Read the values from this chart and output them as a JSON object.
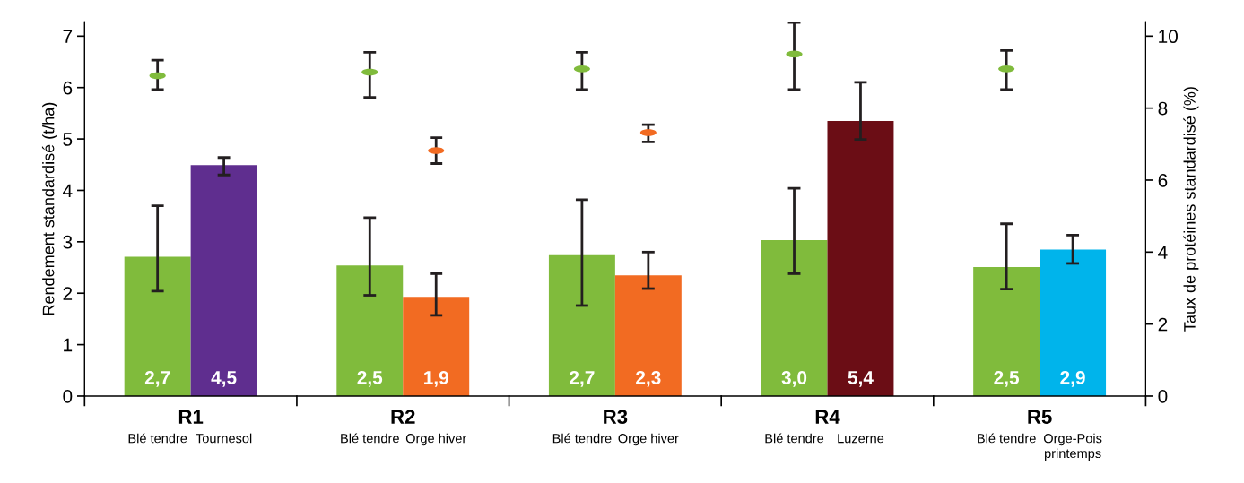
{
  "chart_data": {
    "type": "bar",
    "ylabel": "Rendement standardisé (t/ha)",
    "y2label": "Taux de protéines standardisé (%)",
    "categories": [
      "Blé tendre",
      "Tournesol",
      "Blé tendre",
      "Orge hiver",
      "Blé tendre",
      "Orge hiver",
      "Blé tendre",
      "Luzerne",
      "Blé tendre",
      "Orge-Pois\nprintemps"
    ],
    "annotations": [
      "R1",
      "R2",
      "R3",
      "R4",
      "R5"
    ],
    "ylim": [
      0,
      7.28
    ],
    "yticks": [
      0,
      1,
      2,
      3,
      4,
      5,
      6,
      7
    ],
    "y2lim": [
      0,
      10.4
    ],
    "y2ticks": [
      0,
      2,
      4,
      6,
      8,
      10
    ],
    "grid": false,
    "series": [
      {
        "colors": [
          "#80bb3c",
          "#5f2e8f",
          "#80bb3c",
          "#f26b22",
          "#80bb3c",
          "#f26b22",
          "#80bb3c",
          "#6b0d15",
          "#80bb3c",
          "#00b4eb"
        ],
        "values": [
          2.71,
          4.49,
          2.54,
          1.93,
          2.74,
          2.35,
          3.03,
          5.35,
          2.51,
          2.85
        ],
        "errors": [
          [
            2.04,
            3.7
          ],
          [
            4.3,
            4.64
          ],
          [
            1.96,
            3.47
          ],
          [
            1.57,
            2.38
          ],
          [
            1.76,
            3.82
          ],
          [
            2.09,
            2.8
          ],
          [
            2.38,
            4.04
          ],
          [
            4.99,
            6.1
          ],
          [
            2.08,
            3.35
          ],
          [
            2.58,
            3.13
          ]
        ],
        "value_labels": [
          "2,7",
          "4,5",
          "2,5",
          "1,9",
          "2,7",
          "2,3",
          "3,0",
          "5,4",
          "2,5",
          "2,9"
        ]
      },
      {
        "type": "scatter",
        "axis": "y2",
        "color": "#80bb3c",
        "values": [
          8.9,
          null,
          9.0,
          null,
          9.09,
          null,
          9.5,
          null,
          9.09,
          null
        ],
        "errors": [
          [
            8.52,
            9.33
          ],
          null,
          [
            8.3,
            9.55
          ],
          null,
          [
            8.52,
            9.55
          ],
          null,
          [
            8.52,
            10.38
          ],
          null,
          [
            8.52,
            9.6
          ],
          null
        ]
      },
      {
        "type": "scatter",
        "axis": "y2",
        "color": "#f26b22",
        "values": [
          null,
          null,
          null,
          6.82,
          null,
          7.32,
          null,
          null,
          null,
          null
        ],
        "errors": [
          null,
          null,
          null,
          [
            6.46,
            7.18
          ],
          null,
          [
            7.06,
            7.54
          ],
          null,
          null,
          null,
          null
        ]
      }
    ]
  }
}
